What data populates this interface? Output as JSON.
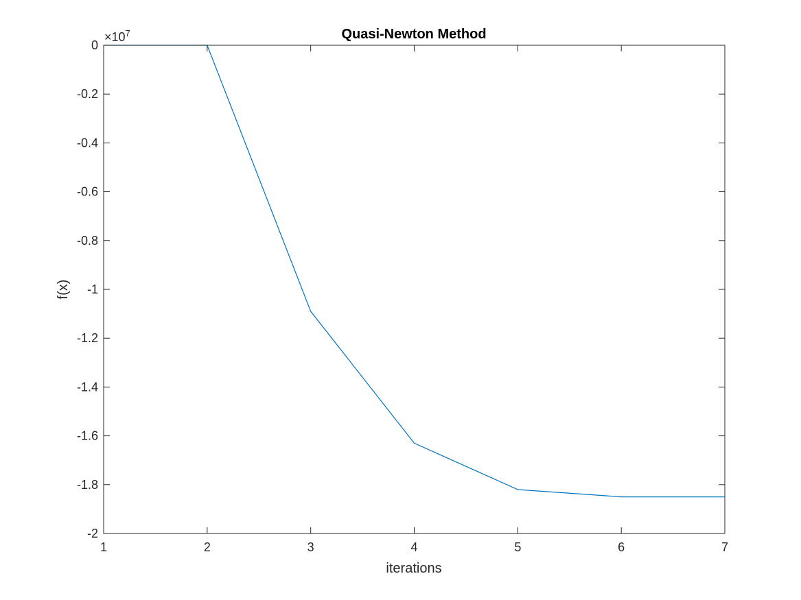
{
  "chart_data": {
    "type": "line",
    "title": "Quasi-Newton Method",
    "xlabel": "iterations",
    "ylabel": "f(x)",
    "y_exponent_multiplier": "×10",
    "y_exponent_power": "7",
    "xlim": [
      1,
      7
    ],
    "ylim": [
      -2,
      0
    ],
    "x_ticks": [
      1,
      2,
      3,
      4,
      5,
      6,
      7
    ],
    "y_ticks": [
      0,
      -0.2,
      -0.4,
      -0.6,
      -0.8,
      -1,
      -1.2,
      -1.4,
      -1.6,
      -1.8,
      -2
    ],
    "y_tick_labels": [
      "0",
      "-0.2",
      "-0.4",
      "-0.6",
      "-0.8",
      "-1",
      "-1.2",
      "-1.4",
      "-1.6",
      "-1.8",
      "-2"
    ],
    "y_scale_note": "values in units of 1e7",
    "grid": false,
    "series": [
      {
        "x": [
          1,
          2,
          3,
          4,
          5,
          6,
          7
        ],
        "y": [
          0,
          0,
          -1.09,
          -1.63,
          -1.82,
          -1.85,
          -1.85
        ],
        "color": "#0072BD"
      }
    ]
  }
}
